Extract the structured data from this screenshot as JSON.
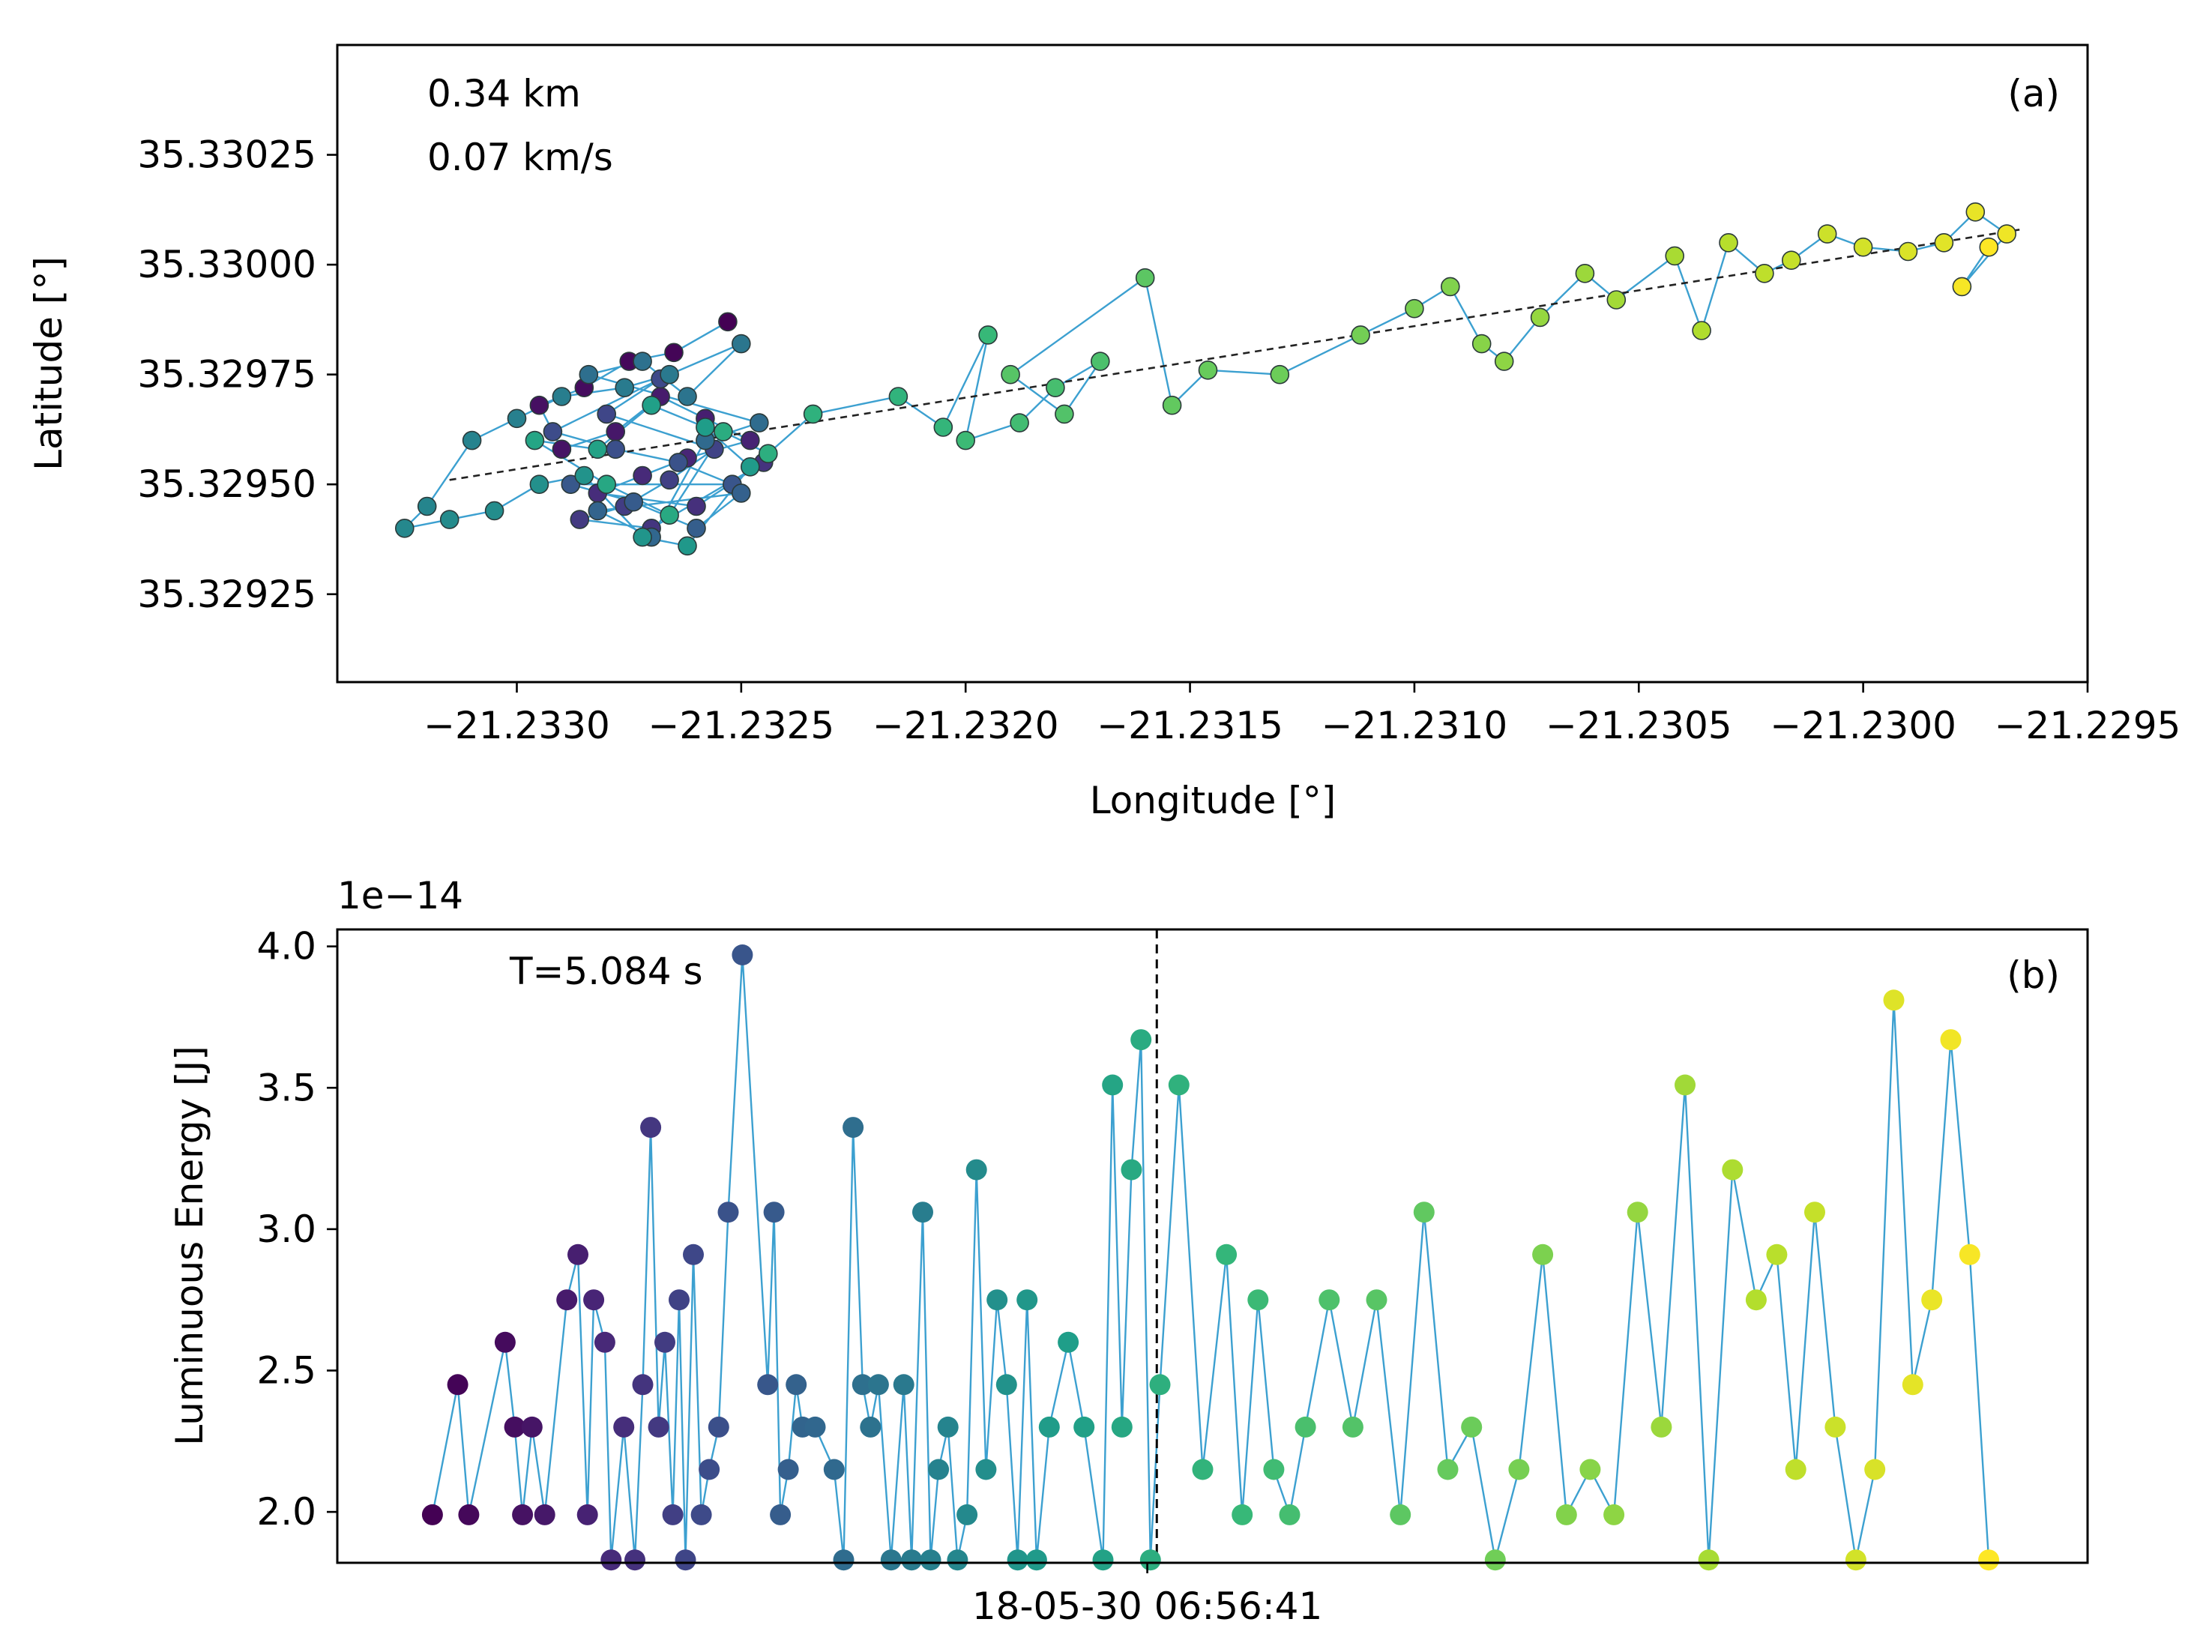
{
  "chart_data": [
    {
      "type": "scatter",
      "panel_label": "(a)",
      "xlabel": "Longitude [°]",
      "ylabel": "Latitude [°]",
      "annotations": [
        "0.34 km",
        "0.07 km/s"
      ],
      "xlim": [
        -21.2334,
        -21.2295
      ],
      "ylim": [
        35.32905,
        35.3305
      ],
      "xticks": [
        -21.233,
        -21.2325,
        -21.232,
        -21.2315,
        -21.231,
        -21.2305,
        -21.23,
        -21.2295
      ],
      "xtick_labels": [
        "−21.2330",
        "−21.2325",
        "−21.2320",
        "−21.2315",
        "−21.2310",
        "−21.2305",
        "−21.2300",
        "−21.2295"
      ],
      "yticks": [
        35.32925,
        35.3295,
        35.32975,
        35.33,
        35.33025
      ],
      "ytick_labels": [
        "35.32925",
        "35.32950",
        "35.32975",
        "35.33000",
        "35.33025"
      ],
      "trend_line": {
        "x": [
          -21.23315,
          -21.22965
        ],
        "y": [
          35.32951,
          35.33008
        ]
      },
      "colormap": "viridis",
      "lon": [
        -21.23253,
        -21.23265,
        -21.23275,
        -21.23285,
        -21.23295,
        -21.2329,
        -21.23278,
        -21.23268,
        -21.23258,
        -21.23248,
        -21.23262,
        -21.23272,
        -21.23282,
        -21.2326,
        -21.23245,
        -21.2327,
        -21.23286,
        -21.23276,
        -21.23266,
        -21.23256,
        -21.2328,
        -21.23268,
        -21.23292,
        -21.23278,
        -21.23264,
        -21.23252,
        -21.23288,
        -21.23274,
        -21.2326,
        -21.2325,
        -21.23282,
        -21.2327,
        -21.23258,
        -21.23246,
        -21.23284,
        -21.23272,
        -21.23262,
        -21.2325,
        -21.23266,
        -21.23276,
        -21.2329,
        -21.233,
        -21.2331,
        -21.2332,
        -21.23325,
        -21.23315,
        -21.23305,
        -21.23295,
        -21.23285,
        -21.23272,
        -21.23262,
        -21.23248,
        -21.23258,
        -21.2327,
        -21.23282,
        -21.23296,
        -21.2328,
        -21.23266,
        -21.23254,
        -21.23244,
        -21.23234,
        -21.23215,
        -21.23205,
        -21.23195,
        -21.232,
        -21.23188,
        -21.2318,
        -21.2317,
        -21.23178,
        -21.2319,
        -21.2316,
        -21.23154,
        -21.23146,
        -21.2313,
        -21.23112,
        -21.231,
        -21.23092,
        -21.23085,
        -21.2308,
        -21.23072,
        -21.23062,
        -21.23055,
        -21.23042,
        -21.23036,
        -21.2303,
        -21.23022,
        -21.23016,
        -21.23008,
        -21.23,
        -21.2299,
        -21.22982,
        -21.22975,
        -21.22968,
        -21.22978,
        -21.22972
      ],
      "lat": [
        35.32987,
        35.3298,
        35.32978,
        35.32972,
        35.32968,
        35.32958,
        35.32962,
        35.3297,
        35.32965,
        35.3296,
        35.32956,
        35.32952,
        35.32948,
        35.32945,
        35.32955,
        35.3294,
        35.32942,
        35.32945,
        35.32951,
        35.32958,
        35.32966,
        35.32974,
        35.32962,
        35.32958,
        35.32955,
        35.3295,
        35.3295,
        35.32946,
        35.3294,
        35.32948,
        35.32944,
        35.32938,
        35.3296,
        35.32964,
        35.32975,
        35.32978,
        35.3297,
        35.32982,
        35.32975,
        35.32972,
        35.3297,
        35.32965,
        35.3296,
        35.32945,
        35.3294,
        35.32942,
        35.32944,
        35.3295,
        35.32952,
        35.32938,
        35.32936,
        35.32954,
        35.32963,
        35.32968,
        35.32958,
        35.3296,
        35.3295,
        35.32943,
        35.32962,
        35.32957,
        35.32966,
        35.3297,
        35.32963,
        35.32984,
        35.3296,
        35.32964,
        35.32972,
        35.32978,
        35.32966,
        35.32975,
        35.32997,
        35.32968,
        35.32976,
        35.32975,
        35.32984,
        35.3299,
        35.32995,
        35.32982,
        35.32978,
        35.32988,
        35.32998,
        35.32992,
        35.33002,
        35.32985,
        35.33005,
        35.32998,
        35.33001,
        35.33007,
        35.33004,
        35.33003,
        35.33005,
        35.33012,
        35.33007,
        35.32995,
        35.33004
      ]
    },
    {
      "type": "scatter",
      "panel_label": "(b)",
      "xlabel": "",
      "ylabel": "Luminuous Energy [J]",
      "offset_text": "1e−14",
      "annotation": "T=5.084 s",
      "ylim": [
        1.82,
        4.06
      ],
      "yticks": [
        2.0,
        2.5,
        3.0,
        3.5,
        4.0
      ],
      "ytick_labels": [
        "2.0",
        "2.5",
        "3.0",
        "3.5",
        "4.0"
      ],
      "x_tick_label": "18-05-30 06:56:41",
      "x_tick_value": 0.46,
      "vline_x": 0.466,
      "colormap": "viridis",
      "x": [
        0.008,
        0.024,
        0.031,
        0.054,
        0.06,
        0.065,
        0.071,
        0.079,
        0.093,
        0.1,
        0.106,
        0.11,
        0.117,
        0.121,
        0.129,
        0.136,
        0.141,
        0.146,
        0.151,
        0.155,
        0.16,
        0.164,
        0.168,
        0.173,
        0.178,
        0.183,
        0.189,
        0.195,
        0.204,
        0.22,
        0.224,
        0.228,
        0.233,
        0.238,
        0.242,
        0.25,
        0.262,
        0.268,
        0.274,
        0.28,
        0.285,
        0.29,
        0.298,
        0.306,
        0.311,
        0.318,
        0.323,
        0.328,
        0.334,
        0.34,
        0.346,
        0.352,
        0.358,
        0.365,
        0.371,
        0.378,
        0.384,
        0.39,
        0.398,
        0.41,
        0.42,
        0.432,
        0.438,
        0.444,
        0.45,
        0.456,
        0.462,
        0.468,
        0.48,
        0.495,
        0.51,
        0.52,
        0.53,
        0.54,
        0.55,
        0.56,
        0.575,
        0.59,
        0.605,
        0.62,
        0.635,
        0.65,
        0.665,
        0.68,
        0.695,
        0.71,
        0.725,
        0.74,
        0.755,
        0.77,
        0.785,
        0.8,
        0.815,
        0.83,
        0.845,
        0.858,
        0.87,
        0.882,
        0.895,
        0.908,
        0.92,
        0.932,
        0.944,
        0.956,
        0.968,
        0.98,
        0.992
      ],
      "y": [
        1.99,
        2.45,
        1.99,
        2.6,
        2.3,
        1.99,
        2.3,
        1.99,
        2.75,
        2.91,
        1.99,
        2.75,
        2.6,
        1.83,
        2.3,
        1.83,
        2.45,
        3.36,
        2.3,
        2.6,
        1.99,
        2.75,
        1.83,
        2.91,
        1.99,
        2.15,
        2.3,
        3.06,
        3.97,
        2.45,
        3.06,
        1.99,
        2.15,
        2.45,
        2.3,
        2.3,
        2.15,
        1.83,
        3.36,
        2.45,
        2.3,
        2.45,
        1.83,
        2.45,
        1.83,
        3.06,
        1.83,
        2.15,
        2.3,
        1.83,
        1.99,
        3.21,
        2.15,
        2.75,
        2.45,
        1.83,
        2.75,
        1.83,
        2.3,
        2.6,
        2.3,
        1.83,
        3.51,
        2.3,
        3.21,
        3.67,
        1.83,
        2.45,
        3.51,
        2.15,
        2.91,
        1.99,
        2.75,
        2.15,
        1.99,
        2.3,
        2.75,
        2.3,
        2.75,
        1.99,
        3.06,
        2.15,
        2.3,
        1.83,
        2.15,
        2.91,
        1.99,
        2.15,
        1.99,
        3.06,
        2.3,
        3.51,
        1.83,
        3.21,
        2.75,
        2.91,
        2.15,
        3.06,
        2.3,
        1.83,
        2.15,
        3.81,
        2.45,
        2.75,
        3.67,
        2.91,
        1.83
      ]
    }
  ]
}
